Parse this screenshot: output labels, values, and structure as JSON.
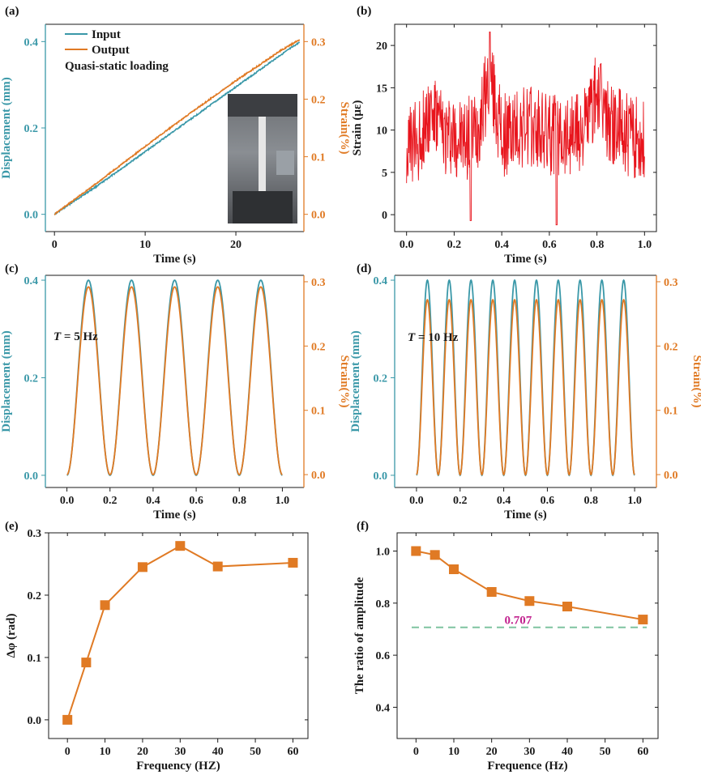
{
  "chart_data": [
    {
      "panel": "(a)",
      "type": "line",
      "xlabel": "Time (s)",
      "ylabel": "Displacement (mm)",
      "ylabel_right": "Strain(%)",
      "xlim": [
        -1,
        27.5
      ],
      "ylim": [
        -0.04,
        0.44
      ],
      "ylim_right": [
        -0.03,
        0.33
      ],
      "xticks": [
        0,
        10,
        20
      ],
      "yticks": [
        0.0,
        0.2,
        0.4
      ],
      "yticks_right": [
        0.0,
        0.1,
        0.2,
        0.3
      ],
      "legend_placement": "top-left",
      "annotation": "Quasi-static loading",
      "inset": "photo of tensile specimen in test grips",
      "series": [
        {
          "name": "Input",
          "axis": "left",
          "color": "#3a98a8",
          "x": [
            0,
            5,
            10,
            15,
            20,
            25,
            27
          ],
          "y": [
            0.0,
            0.07,
            0.145,
            0.22,
            0.295,
            0.37,
            0.398
          ]
        },
        {
          "name": "Output",
          "axis": "right",
          "color": "#e07a24",
          "x": [
            0,
            5,
            10,
            15,
            20,
            25,
            27
          ],
          "y": [
            0.0,
            0.058,
            0.118,
            0.176,
            0.232,
            0.285,
            0.303
          ]
        }
      ]
    },
    {
      "panel": "(b)",
      "type": "line",
      "xlabel": "Time (s)",
      "ylabel": "Strain (με)",
      "xlim": [
        -0.05,
        1.05
      ],
      "ylim": [
        -2,
        22.5
      ],
      "xticks": [
        0.0,
        0.2,
        0.4,
        0.6,
        0.8,
        1.0
      ],
      "yticks": [
        0,
        5,
        10,
        15,
        20
      ],
      "series": [
        {
          "color": "#e8141c",
          "x": [
            0.0,
            0.05,
            0.1,
            0.15,
            0.2,
            0.25,
            0.3,
            0.35,
            0.4,
            0.45,
            0.5,
            0.55,
            0.6,
            0.65,
            0.7,
            0.75,
            0.8,
            0.85,
            0.9,
            0.95,
            1.0
          ],
          "y": [
            6,
            8,
            15,
            10,
            9,
            8,
            11,
            21.5,
            9,
            10,
            11,
            10,
            9,
            10,
            10,
            11,
            18,
            12,
            10,
            9,
            8
          ]
        }
      ]
    },
    {
      "panel": "(c)",
      "type": "line",
      "xlabel": "Time (s)",
      "ylabel": "Displacement (mm)",
      "ylabel_right": "Strain(%)",
      "xlim": [
        -0.1,
        1.1
      ],
      "ylim": [
        -0.025,
        0.41
      ],
      "ylim_right": [
        -0.02,
        0.31
      ],
      "xticks": [
        0.0,
        0.2,
        0.4,
        0.6,
        0.8,
        1.0
      ],
      "yticks": [
        0.0,
        0.2,
        0.4
      ],
      "yticks_right": [
        0.0,
        0.1,
        0.2,
        0.3
      ],
      "annotation": "T = 5 Hz",
      "waves": 5,
      "duration": 1.0,
      "series": [
        {
          "axis": "left",
          "color": "#3a98a8",
          "amplitude_peak": 0.4
        },
        {
          "axis": "right",
          "color": "#e07a24",
          "amplitude_peak": 0.292
        }
      ]
    },
    {
      "panel": "(d)",
      "type": "line",
      "xlabel": "Time (s)",
      "ylabel": "Displacement (mm)",
      "ylabel_right": "Strain(%)",
      "xlim": [
        -0.1,
        1.1
      ],
      "ylim": [
        -0.025,
        0.41
      ],
      "ylim_right": [
        -0.02,
        0.31
      ],
      "xticks": [
        0.0,
        0.2,
        0.4,
        0.6,
        0.8,
        1.0
      ],
      "yticks": [
        0.0,
        0.2,
        0.4
      ],
      "yticks_right": [
        0.0,
        0.1,
        0.2,
        0.3
      ],
      "annotation": "T = 10 Hz",
      "waves": 10,
      "duration": 1.0,
      "series": [
        {
          "axis": "left",
          "color": "#3a98a8",
          "amplitude_peak": 0.4
        },
        {
          "axis": "right",
          "color": "#e07a24",
          "amplitude_peak": 0.272
        }
      ]
    },
    {
      "panel": "(e)",
      "type": "line",
      "xlabel": "Frequency (HZ)",
      "ylabel": "Δφ (rad)",
      "xlim": [
        -5,
        64
      ],
      "ylim": [
        -0.03,
        0.3
      ],
      "xticks": [
        0,
        10,
        20,
        30,
        40,
        50,
        60
      ],
      "yticks": [
        0.0,
        0.1,
        0.2,
        0.3
      ],
      "series": [
        {
          "color": "#e07a24",
          "marker": "square",
          "x": [
            0,
            5,
            10,
            20,
            30,
            40,
            60
          ],
          "y": [
            0.0,
            0.092,
            0.184,
            0.245,
            0.279,
            0.246,
            0.252
          ]
        }
      ]
    },
    {
      "panel": "(f)",
      "type": "line",
      "xlabel": "Frequence (Hz)",
      "ylabel": "The ratio of  amplitude",
      "xlim": [
        -5,
        64
      ],
      "ylim": [
        0.28,
        1.07
      ],
      "xticks": [
        0,
        10,
        20,
        30,
        40,
        50,
        60
      ],
      "yticks": [
        0.4,
        0.6,
        0.8,
        1.0
      ],
      "reference_line": {
        "y": 0.707,
        "label": "0.707",
        "color": "#7fc4a0",
        "label_color": "#c2238f"
      },
      "series": [
        {
          "color": "#e07a24",
          "marker": "square",
          "x": [
            0,
            5,
            10,
            20,
            30,
            40,
            60
          ],
          "y": [
            1.0,
            0.985,
            0.93,
            0.843,
            0.808,
            0.787,
            0.737
          ]
        }
      ]
    }
  ]
}
